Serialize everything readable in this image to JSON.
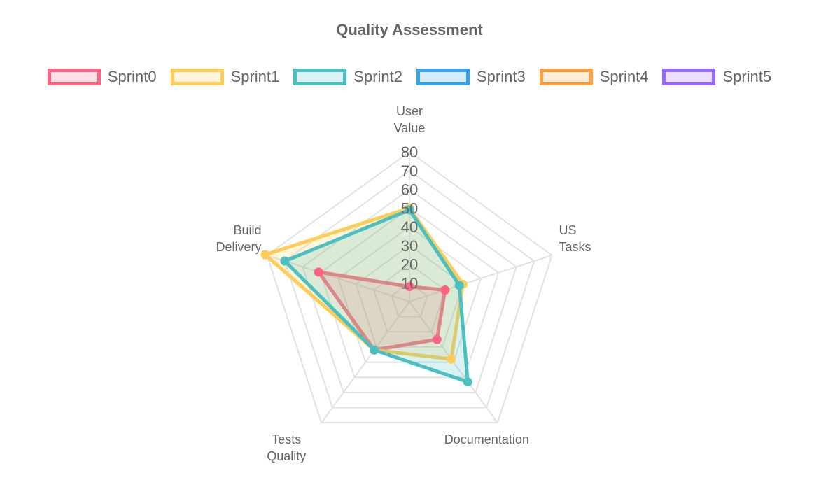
{
  "chart_data": {
    "type": "radar",
    "title": "Quality Assessment",
    "axes": [
      [
        "User",
        "Value"
      ],
      [
        "US",
        "Tasks"
      ],
      [
        "Documentation"
      ],
      [
        "Tests",
        "Quality"
      ],
      [
        "Build",
        "Delivery"
      ]
    ],
    "ticks": [
      "10",
      "20",
      "30",
      "40",
      "50",
      "60",
      "70",
      "80"
    ],
    "rlim": [
      0,
      80
    ],
    "series": [
      {
        "name": "Sprint0",
        "color": "#ff6384",
        "values": [
          8,
          20,
          25,
          32,
          51
        ]
      },
      {
        "name": "Sprint1",
        "color": "#ffcd56",
        "values": [
          50,
          30,
          38,
          32,
          81
        ]
      },
      {
        "name": "Sprint2",
        "color": "#4bc0c0",
        "values": [
          49,
          28,
          53,
          32,
          70
        ]
      },
      {
        "name": "Sprint3",
        "color": "#36a2eb",
        "values": []
      },
      {
        "name": "Sprint4",
        "color": "#ff9f40",
        "values": []
      },
      {
        "name": "Sprint5",
        "color": "#9966ff",
        "values": []
      }
    ],
    "grid": true,
    "legend_position": "top"
  }
}
